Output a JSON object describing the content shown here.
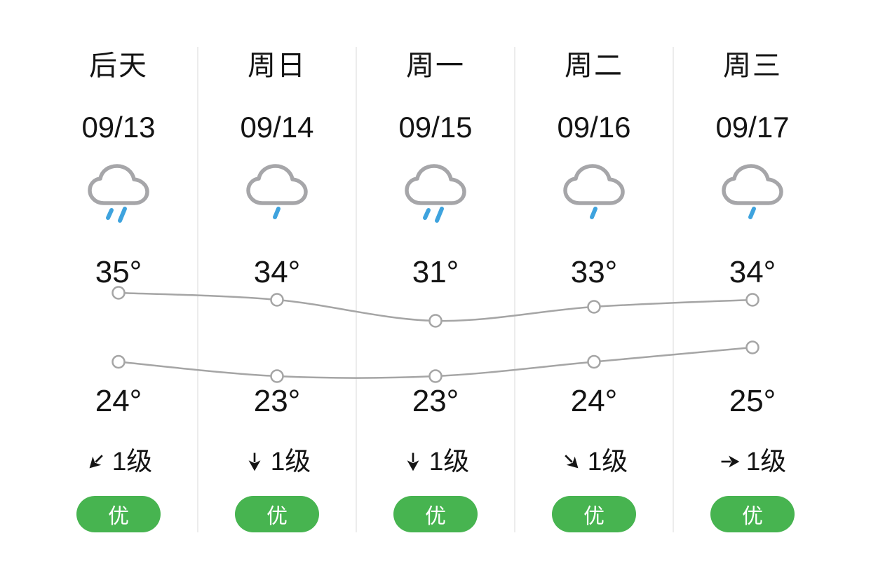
{
  "colors": {
    "badge_green": "#47b450",
    "rain_blue": "#3ea3de",
    "cloud_gray": "#a6a6a9",
    "line_gray": "#a5a5a5",
    "divider_gray": "#ececec",
    "text_dark": "#141414"
  },
  "columns": [
    {
      "day": "后天",
      "date": "09/13",
      "icon": "cloud-rain-2",
      "high": "35°",
      "low": "24°",
      "wind_direction": "down-left",
      "wind_level": "1级",
      "aqi": "优"
    },
    {
      "day": "周日",
      "date": "09/14",
      "icon": "cloud-rain-1",
      "high": "34°",
      "low": "23°",
      "wind_direction": "down",
      "wind_level": "1级",
      "aqi": "优"
    },
    {
      "day": "周一",
      "date": "09/15",
      "icon": "cloud-rain-2",
      "high": "31°",
      "low": "23°",
      "wind_direction": "down",
      "wind_level": "1级",
      "aqi": "优"
    },
    {
      "day": "周二",
      "date": "09/16",
      "icon": "cloud-rain-1",
      "high": "33°",
      "low": "24°",
      "wind_direction": "down-right",
      "wind_level": "1级",
      "aqi": "优"
    },
    {
      "day": "周三",
      "date": "09/17",
      "icon": "cloud-rain-1",
      "high": "34°",
      "low": "25°",
      "wind_direction": "right",
      "wind_level": "1级",
      "aqi": "优"
    }
  ],
  "chart_data": {
    "type": "line",
    "categories": [
      "09/13",
      "09/14",
      "09/15",
      "09/16",
      "09/17"
    ],
    "series": [
      {
        "name": "high",
        "values": [
          35,
          34,
          31,
          33,
          34
        ]
      },
      {
        "name": "low",
        "values": [
          24,
          23,
          23,
          24,
          25
        ]
      }
    ],
    "grid": false,
    "legend": "none",
    "point_style": "open-circle",
    "smooth": true
  }
}
